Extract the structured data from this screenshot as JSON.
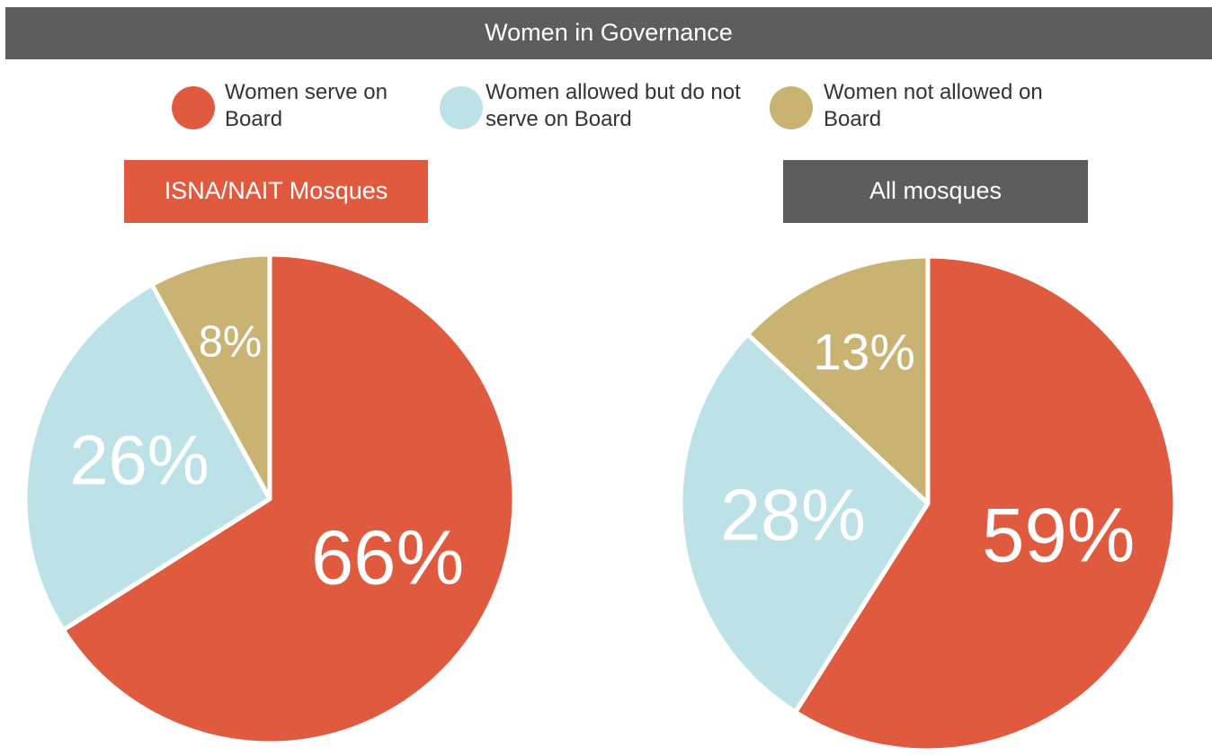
{
  "title": "Women in Governance",
  "chart_data": [
    {
      "type": "pie",
      "title": "ISNA/NAIT Mosques",
      "title_color": "#e05a3f",
      "categories": [
        "Women serve on Board",
        "Women allowed but do not serve on Board",
        "Women not allowed on Board"
      ],
      "values": [
        66,
        26,
        8
      ],
      "value_labels": [
        "66%",
        "26%",
        "8%"
      ],
      "colors": [
        "#e05a3f",
        "#bce2e8",
        "#c8b372"
      ]
    },
    {
      "type": "pie",
      "title": "All mosques",
      "title_color": "#5d5d5d",
      "categories": [
        "Women serve on Board",
        "Women allowed but do not serve on Board",
        "Women not allowed on Board"
      ],
      "values": [
        59,
        28,
        13
      ],
      "value_labels": [
        "59%",
        "28%",
        "13%"
      ],
      "colors": [
        "#e05a3f",
        "#bce2e8",
        "#c8b372"
      ]
    }
  ]
}
